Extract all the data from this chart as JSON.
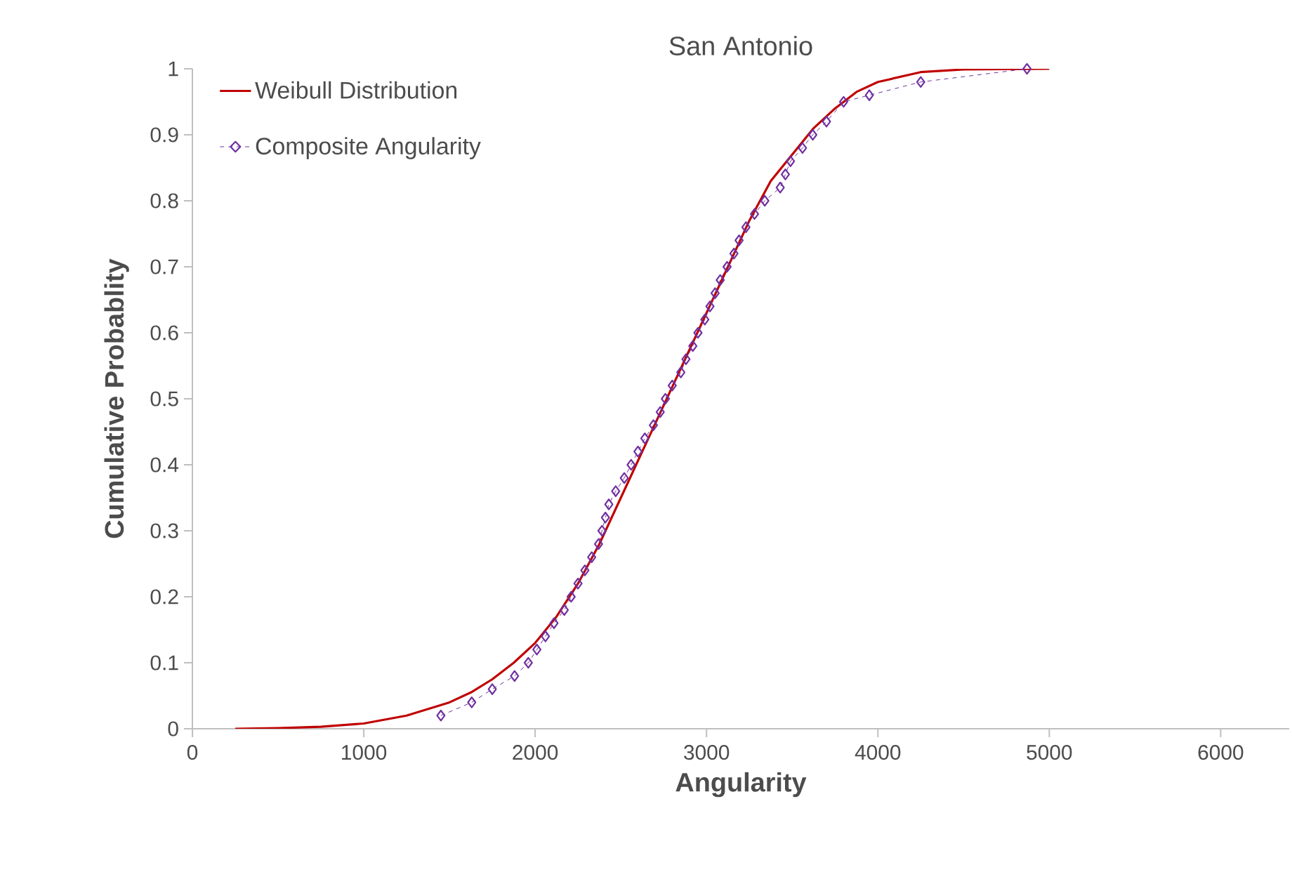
{
  "chart_data": {
    "type": "line",
    "title": "San Antonio",
    "xlabel": "Angularity",
    "ylabel": "Cumulative Probablity",
    "xlim": [
      0,
      6400
    ],
    "ylim": [
      0,
      1
    ],
    "xticks": [
      0,
      1000,
      2000,
      3000,
      4000,
      5000,
      6000
    ],
    "yticks": [
      0,
      0.1,
      0.2,
      0.3,
      0.4,
      0.5,
      0.6,
      0.7,
      0.8,
      0.9,
      1
    ],
    "grid": false,
    "legend": "top left",
    "series": [
      {
        "name": "Weibull Distribution",
        "color": "#c00000",
        "marker": "none",
        "line_style": "solid",
        "x": [
          250,
          500,
          750,
          1000,
          1250,
          1500,
          1625,
          1750,
          1875,
          2000,
          2125,
          2250,
          2375,
          2500,
          2625,
          2750,
          2875,
          3000,
          3125,
          3250,
          3375,
          3500,
          3625,
          3750,
          3875,
          4000,
          4250,
          4500,
          5000
        ],
        "values": [
          0,
          0.001,
          0.003,
          0.008,
          0.02,
          0.04,
          0.055,
          0.075,
          0.1,
          0.13,
          0.17,
          0.22,
          0.28,
          0.35,
          0.42,
          0.49,
          0.56,
          0.63,
          0.7,
          0.77,
          0.83,
          0.87,
          0.91,
          0.94,
          0.965,
          0.98,
          0.995,
          0.999,
          1.0
        ]
      },
      {
        "name": "Composite Angularity",
        "color": "#7030a0",
        "marker": "diamond",
        "line_style": "dashed",
        "x": [
          1450,
          1630,
          1750,
          1880,
          1960,
          2010,
          2060,
          2110,
          2170,
          2210,
          2250,
          2290,
          2330,
          2370,
          2390,
          2410,
          2430,
          2470,
          2520,
          2560,
          2600,
          2640,
          2690,
          2730,
          2760,
          2800,
          2850,
          2880,
          2920,
          2950,
          2990,
          3020,
          3050,
          3080,
          3120,
          3160,
          3190,
          3230,
          3280,
          3340,
          3430,
          3460,
          3490,
          3560,
          3620,
          3700,
          3800,
          3950,
          4250,
          4870
        ],
        "values": [
          0.02,
          0.04,
          0.06,
          0.08,
          0.1,
          0.12,
          0.14,
          0.16,
          0.18,
          0.2,
          0.22,
          0.24,
          0.26,
          0.28,
          0.3,
          0.32,
          0.34,
          0.36,
          0.38,
          0.4,
          0.42,
          0.44,
          0.46,
          0.48,
          0.5,
          0.52,
          0.54,
          0.56,
          0.58,
          0.6,
          0.62,
          0.64,
          0.66,
          0.68,
          0.7,
          0.72,
          0.74,
          0.76,
          0.78,
          0.8,
          0.82,
          0.84,
          0.86,
          0.88,
          0.9,
          0.92,
          0.95,
          0.96,
          0.98,
          1.0
        ]
      }
    ]
  }
}
